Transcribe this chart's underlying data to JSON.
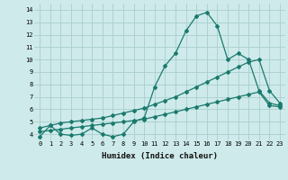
{
  "bg_color": "#ceeaea",
  "line_color": "#1a7a6e",
  "grid_color": "#aacece",
  "xlabel": "Humidex (Indice chaleur)",
  "xlim": [
    -0.5,
    23.5
  ],
  "ylim": [
    3.5,
    14.5
  ],
  "yticks": [
    4,
    5,
    6,
    7,
    8,
    9,
    10,
    11,
    12,
    13,
    14
  ],
  "xticks": [
    0,
    1,
    2,
    3,
    4,
    5,
    6,
    7,
    8,
    9,
    10,
    11,
    12,
    13,
    14,
    15,
    16,
    17,
    18,
    19,
    20,
    21,
    22,
    23
  ],
  "line1_x": [
    0,
    1,
    2,
    3,
    4,
    5,
    6,
    7,
    8,
    9,
    10,
    11,
    12,
    13,
    14,
    15,
    16,
    17,
    18,
    19,
    20,
    21,
    22,
    23
  ],
  "line1_y": [
    3.8,
    4.7,
    4.0,
    3.9,
    4.0,
    4.5,
    4.0,
    3.8,
    4.0,
    5.0,
    5.3,
    7.8,
    9.5,
    10.5,
    12.3,
    13.5,
    13.8,
    12.7,
    10.0,
    10.5,
    10.0,
    7.5,
    6.5,
    6.3
  ],
  "line2_x": [
    0,
    1,
    2,
    3,
    4,
    5,
    6,
    7,
    8,
    9,
    10,
    11,
    12,
    13,
    14,
    15,
    16,
    17,
    18,
    19,
    20,
    21,
    22,
    23
  ],
  "line2_y": [
    4.5,
    4.7,
    4.9,
    5.0,
    5.1,
    5.2,
    5.3,
    5.5,
    5.7,
    5.9,
    6.1,
    6.4,
    6.7,
    7.0,
    7.4,
    7.8,
    8.2,
    8.6,
    9.0,
    9.4,
    9.8,
    10.0,
    7.5,
    6.5
  ],
  "line3_x": [
    0,
    1,
    2,
    3,
    4,
    5,
    6,
    7,
    8,
    9,
    10,
    11,
    12,
    13,
    14,
    15,
    16,
    17,
    18,
    19,
    20,
    21,
    22,
    23
  ],
  "line3_y": [
    4.2,
    4.3,
    4.4,
    4.5,
    4.6,
    4.7,
    4.8,
    4.9,
    5.0,
    5.1,
    5.2,
    5.4,
    5.6,
    5.8,
    6.0,
    6.2,
    6.4,
    6.6,
    6.8,
    7.0,
    7.2,
    7.4,
    6.3,
    6.2
  ],
  "marker": "D",
  "marker_size": 2,
  "line_width": 0.9,
  "tick_fontsize": 5.0,
  "xlabel_fontsize": 6.5
}
